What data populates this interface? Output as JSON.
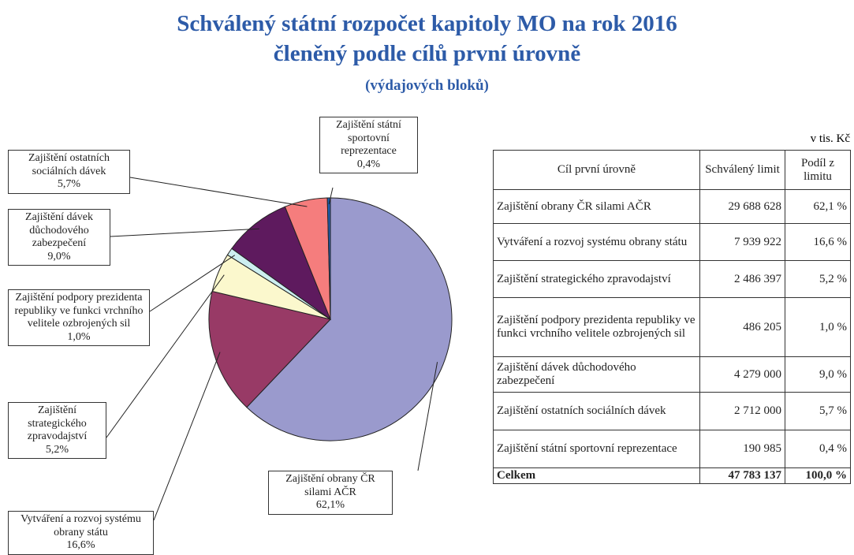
{
  "chart_data": {
    "type": "pie",
    "title": "Schválený státní rozpočet kapitoly MO na rok 2016",
    "subtitle": "členěný podle cílů první úrovně",
    "note": "(výdajových bloků)",
    "categories": [
      "Zajištění obrany ČR silami AČR",
      "Vytváření a rozvoj systému obrany státu",
      "Zajištění strategického zpravodajství",
      "Zajištění podpory prezidenta republiky ve funkci vrchního velitele ozbrojených sil",
      "Zajištění dávek důchodového zabezpečení",
      "Zajištění ostatních sociálních dávek",
      "Zajištění státní sportovní reprezentace"
    ],
    "values": [
      62.1,
      16.6,
      5.2,
      1.0,
      9.0,
      5.7,
      0.4
    ],
    "value_labels": [
      "62,1%",
      "16,6%",
      "5,2%",
      "1,0%",
      "9,0%",
      "5,7%",
      "0,4%"
    ],
    "colors": [
      "#9a9acd",
      "#983a66",
      "#fbf8cd",
      "#cdeef0",
      "#5e1a5e",
      "#f57d7d",
      "#1f5fb0"
    ]
  },
  "table": {
    "unit": "v tis. Kč",
    "header": [
      "Cíl první úrovně",
      "Schválený limit",
      "Podíl z limitu"
    ],
    "rows": [
      [
        "Zajištění obrany ČR silami AČR",
        "29 688 628",
        "62,1 %"
      ],
      [
        "Vytváření a rozvoj systému obrany státu",
        "7 939 922",
        "16,6 %"
      ],
      [
        "Zajištění strategického zpravodajství",
        "2 486 397",
        "5,2 %"
      ],
      [
        "Zajištění podpory prezidenta republiky ve funkci vrchního velitele ozbrojených sil",
        "486 205",
        "1,0 %"
      ],
      [
        "Zajištění dávek důchodového zabezpečení",
        "4 279 000",
        "9,0 %"
      ],
      [
        "Zajištění ostatních sociálních dávek",
        "2 712 000",
        "5,7 %"
      ],
      [
        "Zajištění státní sportovní reprezentace",
        "190 985",
        "0,4 %"
      ]
    ],
    "total": [
      "Celkem",
      "47 783 137",
      "100,0 %"
    ]
  }
}
